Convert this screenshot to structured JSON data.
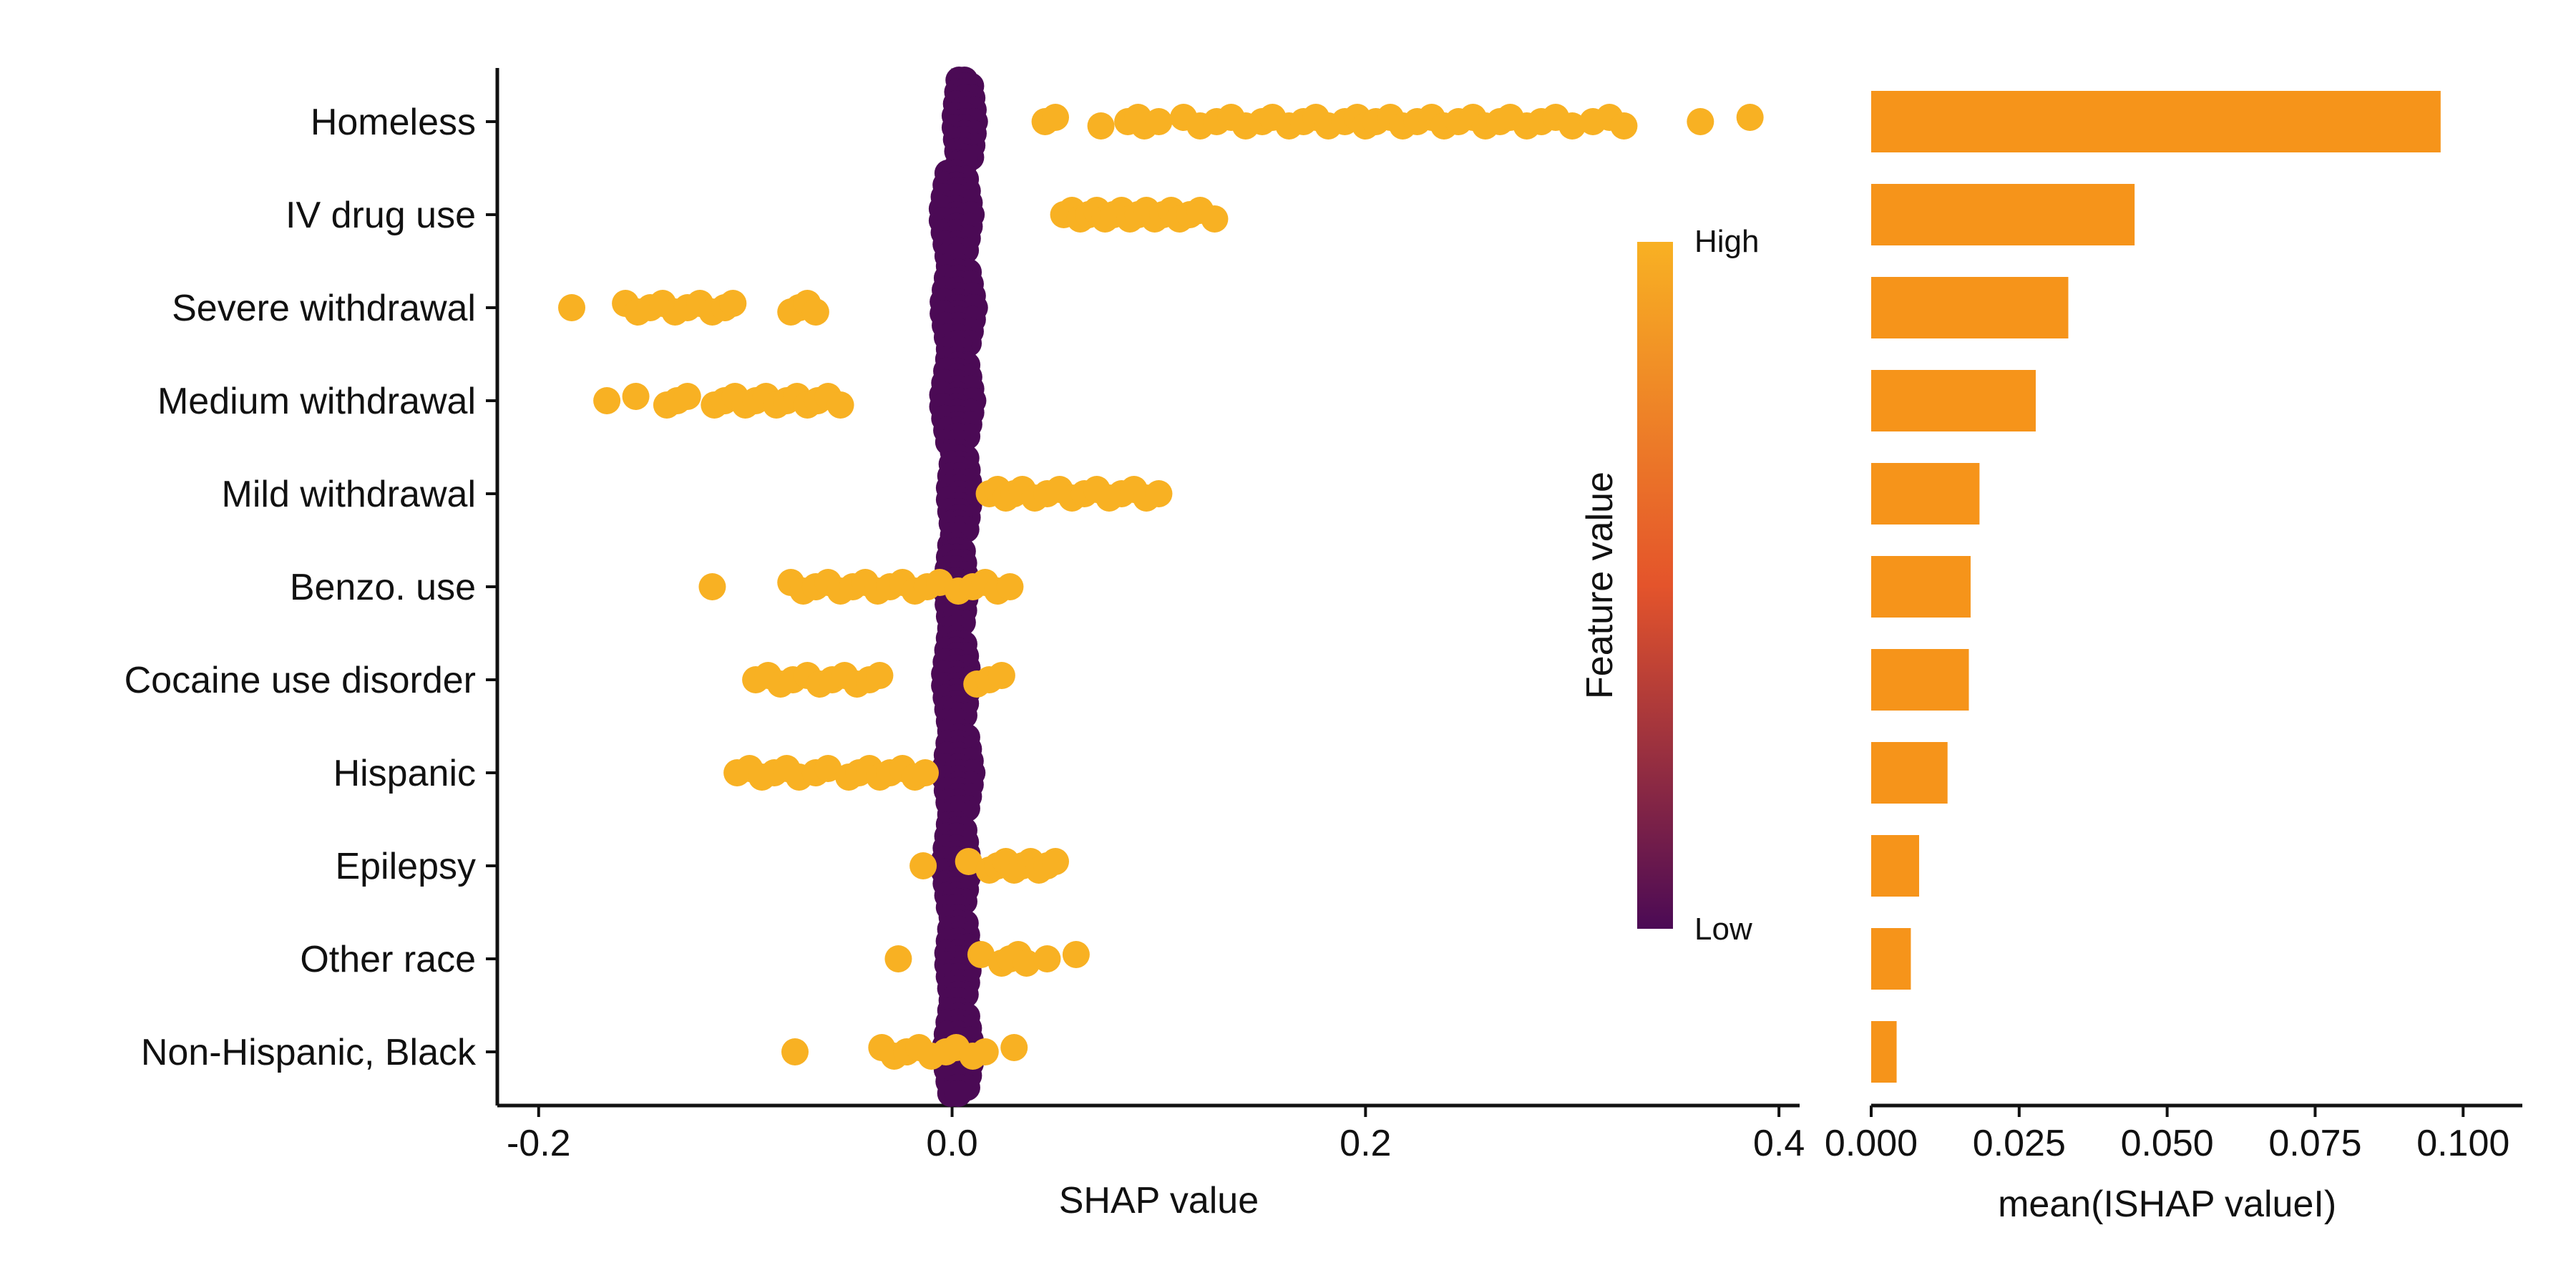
{
  "chart_data": [
    {
      "type": "scatter",
      "subtype": "beeswarm",
      "xlabel": "SHAP value",
      "xlim": [
        -0.22,
        0.41
      ],
      "xticks": [
        -0.2,
        0.0,
        0.2,
        0.4
      ],
      "xtick_labels": [
        "-0.2",
        "0.0",
        "0.2",
        "0.4"
      ],
      "features": [
        "Homeless",
        "IV drug use",
        "Severe withdrawal",
        "Medium withdrawal",
        "Mild withdrawal",
        "Benzo. use",
        "Cocaine use disorder",
        "Hispanic",
        "Epilepsy",
        "Other race",
        "Non-Hispanic, Black"
      ],
      "colorbar": {
        "title": "Feature value",
        "high_label": "High",
        "low_label": "Low",
        "high_color": "#F8B123",
        "mid_color": "#E4542B",
        "low_color": "#4B0A55"
      },
      "series": [
        {
          "feature": "Homeless",
          "low_range": [
            -0.002,
            0.014
          ],
          "high_points": [
            0.045,
            0.05,
            0.072,
            0.085,
            0.09,
            0.093,
            0.1,
            0.112,
            0.12,
            0.128,
            0.135,
            0.142,
            0.15,
            0.155,
            0.163,
            0.17,
            0.176,
            0.182,
            0.19,
            0.196,
            0.2,
            0.205,
            0.212,
            0.218,
            0.225,
            0.232,
            0.238,
            0.245,
            0.252,
            0.258,
            0.265,
            0.27,
            0.278,
            0.285,
            0.292,
            0.3,
            0.31,
            0.318,
            0.325,
            0.362,
            0.386
          ]
        },
        {
          "feature": "IV drug use",
          "low_range": [
            -0.01,
            0.014
          ],
          "high_points": [
            0.054,
            0.058,
            0.062,
            0.066,
            0.07,
            0.074,
            0.078,
            0.082,
            0.086,
            0.09,
            0.094,
            0.098,
            0.102,
            0.106,
            0.11,
            0.115,
            0.12,
            0.127
          ]
        },
        {
          "feature": "Severe withdrawal",
          "low_range": [
            -0.01,
            0.016
          ],
          "high_points": [
            -0.184,
            -0.158,
            -0.152,
            -0.146,
            -0.14,
            -0.134,
            -0.128,
            -0.122,
            -0.116,
            -0.11,
            -0.106,
            -0.078,
            -0.074,
            -0.07,
            -0.066
          ]
        },
        {
          "feature": "Medium withdrawal",
          "low_range": [
            -0.01,
            0.015
          ],
          "high_points": [
            -0.167,
            -0.153,
            -0.138,
            -0.133,
            -0.128,
            -0.115,
            -0.11,
            -0.105,
            -0.1,
            -0.095,
            -0.09,
            -0.085,
            -0.08,
            -0.075,
            -0.07,
            -0.065,
            -0.06,
            -0.054
          ]
        },
        {
          "feature": "Mild withdrawal",
          "low_range": [
            -0.005,
            0.012
          ],
          "high_points": [
            0.018,
            0.022,
            0.026,
            0.03,
            0.034,
            0.04,
            0.046,
            0.052,
            0.058,
            0.064,
            0.07,
            0.076,
            0.082,
            0.088,
            0.094,
            0.1
          ]
        },
        {
          "feature": "Benzo. use",
          "low_range": [
            -0.006,
            0.01
          ],
          "high_points": [
            -0.116,
            -0.078,
            -0.072,
            -0.066,
            -0.06,
            -0.054,
            -0.048,
            -0.042,
            -0.036,
            -0.03,
            -0.024,
            -0.018,
            -0.012,
            -0.006,
            0.003,
            0.01,
            0.016,
            0.022,
            0.028
          ]
        },
        {
          "feature": "Cocaine use disorder",
          "low_range": [
            -0.008,
            0.012
          ],
          "high_points": [
            -0.095,
            -0.089,
            -0.083,
            -0.077,
            -0.07,
            -0.064,
            -0.058,
            -0.052,
            -0.046,
            -0.04,
            -0.035,
            0.012,
            0.018,
            0.024
          ]
        },
        {
          "feature": "Hispanic",
          "low_range": [
            -0.008,
            0.014
          ],
          "high_points": [
            -0.104,
            -0.098,
            -0.092,
            -0.086,
            -0.08,
            -0.074,
            -0.066,
            -0.06,
            -0.05,
            -0.045,
            -0.04,
            -0.035,
            -0.03,
            -0.024,
            -0.018,
            -0.013
          ]
        },
        {
          "feature": "Epilepsy",
          "low_range": [
            -0.008,
            0.012
          ],
          "high_points": [
            -0.014,
            0.008,
            0.018,
            0.022,
            0.026,
            0.03,
            0.034,
            0.038,
            0.042,
            0.046,
            0.05
          ]
        },
        {
          "feature": "Other race",
          "low_range": [
            -0.006,
            0.012
          ],
          "high_points": [
            -0.026,
            0.014,
            0.024,
            0.028,
            0.032,
            0.036,
            0.046,
            0.06
          ]
        },
        {
          "feature": "Non-Hispanic, Black",
          "low_range": [
            -0.008,
            0.014
          ],
          "high_points": [
            -0.076,
            -0.034,
            -0.028,
            -0.022,
            -0.016,
            -0.01,
            -0.003,
            0.002,
            0.01,
            0.016,
            0.03
          ]
        }
      ]
    },
    {
      "type": "bar",
      "orientation": "horizontal",
      "xlabel": "mean(ISHAP valueI)",
      "xlim": [
        0.0,
        0.11
      ],
      "xticks": [
        0.0,
        0.025,
        0.05,
        0.075,
        0.1
      ],
      "xtick_labels": [
        "0.000",
        "0.025",
        "0.050",
        "0.075",
        "0.100"
      ],
      "categories": [
        "Homeless",
        "IV drug use",
        "Severe withdrawal",
        "Medium withdrawal",
        "Mild withdrawal",
        "Benzo. use",
        "Cocaine use disorder",
        "Hispanic",
        "Epilepsy",
        "Other race",
        "Non-Hispanic, Black"
      ],
      "values": [
        0.0962,
        0.0445,
        0.0333,
        0.0278,
        0.0183,
        0.0168,
        0.0165,
        0.0129,
        0.0081,
        0.0067,
        0.0043
      ],
      "color": "#F6941A"
    }
  ]
}
